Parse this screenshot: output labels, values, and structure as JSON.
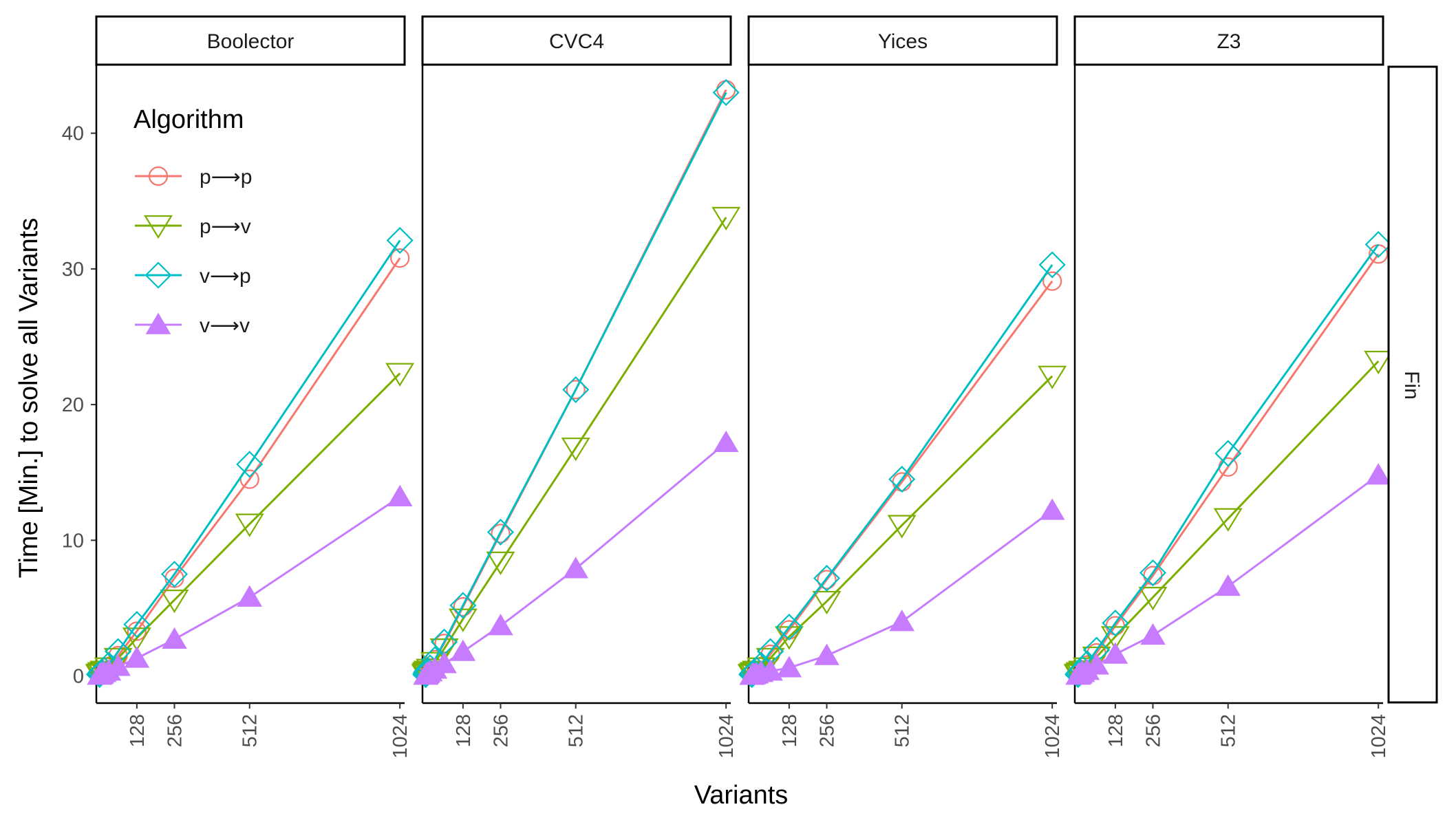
{
  "chart_data": {
    "type": "line",
    "xlabel": "Variants",
    "ylabel": "Time [Min.] to solve all Variants",
    "x_ticks": [
      128,
      256,
      512,
      1024
    ],
    "y_ticks": [
      0,
      10,
      20,
      30,
      40
    ],
    "xlim": [
      -10,
      1040
    ],
    "ylim": [
      -2,
      45
    ],
    "row_strip": "Fin",
    "legend": {
      "title": "Algorithm",
      "placement": "top-left",
      "items": [
        {
          "label": "p⟶p",
          "color": "#F8766D",
          "shape": "circle-open"
        },
        {
          "label": "p⟶v",
          "color": "#7CAE00",
          "shape": "triangle-down-open"
        },
        {
          "label": "v⟶p",
          "color": "#00BFC4",
          "shape": "diamond-open"
        },
        {
          "label": "v⟶v",
          "color": "#C77CFF",
          "shape": "triangle-up-filled"
        }
      ]
    },
    "x": [
      1,
      2,
      4,
      8,
      16,
      32,
      64,
      128,
      256,
      512,
      1024
    ],
    "panels": [
      {
        "title": "Boolector",
        "series": [
          {
            "key": "pp",
            "values": [
              0.1,
              0.15,
              0.2,
              0.3,
              0.4,
              0.7,
              1.5,
              3.3,
              7.2,
              14.5,
              30.8
            ]
          },
          {
            "key": "pv",
            "values": [
              0.1,
              0.1,
              0.15,
              0.25,
              0.35,
              0.6,
              1.3,
              2.8,
              5.6,
              11.2,
              22.3
            ]
          },
          {
            "key": "vp",
            "values": [
              0.1,
              0.15,
              0.2,
              0.3,
              0.45,
              0.8,
              1.8,
              3.8,
              7.5,
              15.6,
              32.1
            ]
          },
          {
            "key": "vv",
            "values": [
              0.05,
              0.1,
              0.1,
              0.15,
              0.25,
              0.35,
              0.7,
              1.3,
              2.7,
              5.8,
              13.2
            ]
          }
        ]
      },
      {
        "title": "CVC4",
        "series": [
          {
            "key": "pp",
            "values": [
              0.1,
              0.2,
              0.3,
              0.4,
              0.6,
              1.2,
              2.4,
              5.1,
              10.5,
              21.1,
              43.2
            ]
          },
          {
            "key": "pv",
            "values": [
              0.1,
              0.15,
              0.25,
              0.35,
              0.5,
              1.0,
              2.0,
              4.2,
              8.4,
              16.8,
              33.8
            ]
          },
          {
            "key": "vp",
            "values": [
              0.1,
              0.2,
              0.3,
              0.4,
              0.6,
              1.2,
              2.5,
              5.2,
              10.6,
              21.1,
              43.0
            ]
          },
          {
            "key": "vv",
            "values": [
              0.05,
              0.1,
              0.15,
              0.2,
              0.3,
              0.5,
              0.9,
              1.8,
              3.7,
              7.9,
              17.2
            ]
          }
        ]
      },
      {
        "title": "Yices",
        "series": [
          {
            "key": "pp",
            "values": [
              0.1,
              0.15,
              0.2,
              0.3,
              0.4,
              0.7,
              1.6,
              3.4,
              7.1,
              14.3,
              29.1
            ]
          },
          {
            "key": "pv",
            "values": [
              0.1,
              0.1,
              0.15,
              0.25,
              0.35,
              0.6,
              1.3,
              2.9,
              5.5,
              11.1,
              22.1
            ]
          },
          {
            "key": "vp",
            "values": [
              0.1,
              0.15,
              0.2,
              0.3,
              0.45,
              0.8,
              1.8,
              3.6,
              7.2,
              14.5,
              30.3
            ]
          },
          {
            "key": "vv",
            "values": [
              0.05,
              0.05,
              0.1,
              0.1,
              0.15,
              0.25,
              0.35,
              0.6,
              1.5,
              4.0,
              12.2
            ]
          }
        ]
      },
      {
        "title": "Z3",
        "series": [
          {
            "key": "pp",
            "values": [
              0.1,
              0.15,
              0.2,
              0.3,
              0.45,
              0.8,
              1.7,
              3.7,
              7.4,
              15.4,
              31.1
            ]
          },
          {
            "key": "pv",
            "values": [
              0.1,
              0.1,
              0.15,
              0.25,
              0.35,
              0.6,
              1.4,
              2.9,
              5.8,
              11.6,
              23.2
            ]
          },
          {
            "key": "vp",
            "values": [
              0.1,
              0.15,
              0.2,
              0.3,
              0.5,
              0.9,
              1.9,
              3.9,
              7.6,
              16.4,
              31.8
            ]
          },
          {
            "key": "vv",
            "values": [
              0.05,
              0.1,
              0.1,
              0.15,
              0.25,
              0.4,
              0.8,
              1.6,
              3.0,
              6.6,
              14.8
            ]
          }
        ]
      }
    ]
  }
}
